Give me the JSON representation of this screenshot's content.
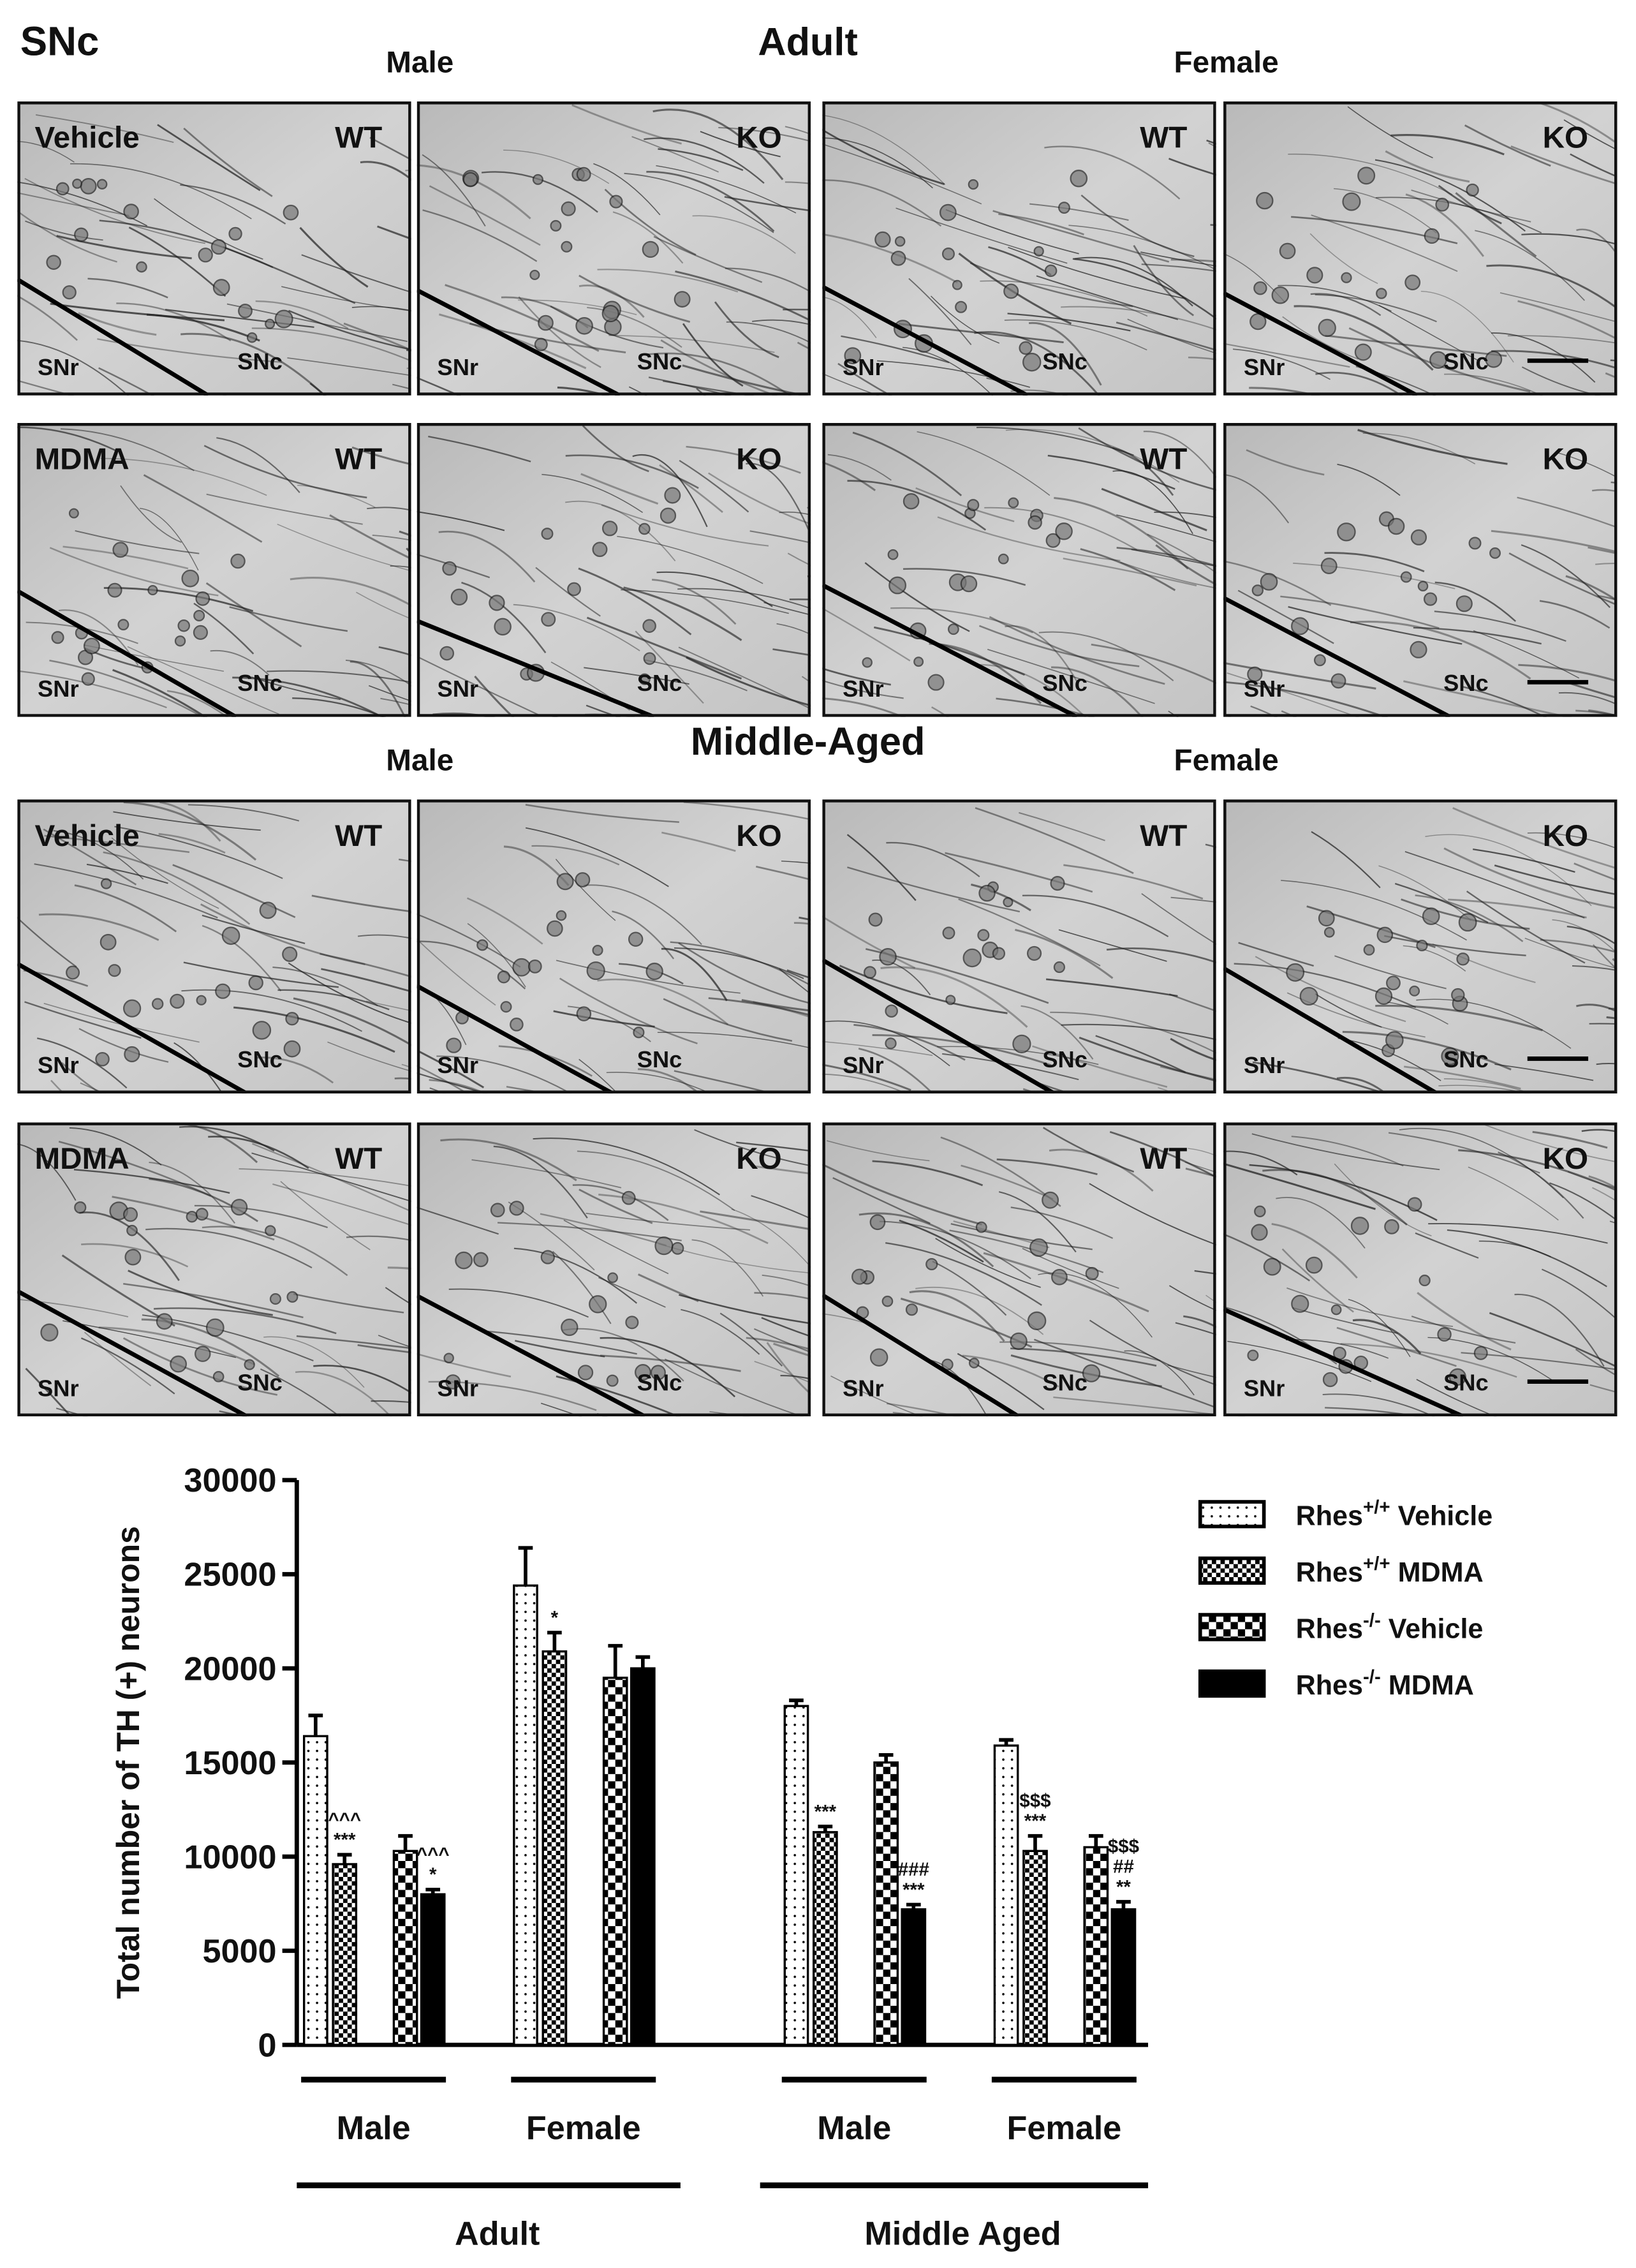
{
  "micrographs": {
    "label": "SNc",
    "sections": [
      {
        "title": "Adult",
        "sexes": [
          "Male",
          "Female"
        ],
        "rows": [
          {
            "treatment": "Vehicle",
            "panels": [
              {
                "genotype": "WT",
                "regions": [
                  "SNr",
                  "SNc"
                ]
              },
              {
                "genotype": "KO",
                "regions": [
                  "SNr",
                  "SNc"
                ]
              },
              {
                "genotype": "WT",
                "regions": [
                  "SNr",
                  "SNc"
                ]
              },
              {
                "genotype": "KO",
                "regions": [
                  "SNr",
                  "SNc"
                ]
              }
            ]
          },
          {
            "treatment": "MDMA",
            "panels": [
              {
                "genotype": "WT",
                "regions": [
                  "SNr",
                  "SNc"
                ]
              },
              {
                "genotype": "KO",
                "regions": [
                  "SNr",
                  "SNc"
                ]
              },
              {
                "genotype": "WT",
                "regions": [
                  "SNr",
                  "SNc"
                ]
              },
              {
                "genotype": "KO",
                "regions": [
                  "SNr",
                  "SNc"
                ]
              }
            ]
          }
        ]
      },
      {
        "title": "Middle-Aged",
        "sexes": [
          "Male",
          "Female"
        ],
        "rows": [
          {
            "treatment": "Vehicle",
            "panels": [
              {
                "genotype": "WT",
                "regions": [
                  "SNr",
                  "SNc"
                ]
              },
              {
                "genotype": "KO",
                "regions": [
                  "SNr",
                  "SNc"
                ]
              },
              {
                "genotype": "WT",
                "regions": [
                  "SNr",
                  "SNc"
                ]
              },
              {
                "genotype": "KO",
                "regions": [
                  "SNr",
                  "SNc"
                ]
              }
            ]
          },
          {
            "treatment": "MDMA",
            "panels": [
              {
                "genotype": "WT",
                "regions": [
                  "SNr",
                  "SNc"
                ]
              },
              {
                "genotype": "KO",
                "regions": [
                  "SNr",
                  "SNc"
                ]
              },
              {
                "genotype": "WT",
                "regions": [
                  "SNr",
                  "SNc"
                ]
              },
              {
                "genotype": "KO",
                "regions": [
                  "SNr",
                  "SNc"
                ]
              }
            ]
          }
        ]
      }
    ]
  },
  "chart_data": {
    "type": "bar",
    "y_label": "Total number of TH (+) neurons",
    "categories": [
      "Male",
      "Female",
      "Male",
      "Female"
    ],
    "group_labels": [
      "Adult",
      "Middle Aged"
    ],
    "ylim": [
      0,
      30000
    ],
    "yticks": [
      0,
      5000,
      10000,
      15000,
      20000,
      25000,
      30000
    ],
    "legend_position": "upper right",
    "series": [
      {
        "name": "Rhes+/+ Vehicle",
        "color": "#ffffff",
        "pattern": "dots",
        "values": [
          16400,
          24400,
          18000,
          15900
        ],
        "errors": [
          1100,
          2000,
          300,
          300
        ],
        "annotations": [
          null,
          null,
          null,
          null
        ]
      },
      {
        "name": "Rhes+/+ MDMA",
        "color": "#ffffff",
        "pattern": "fine-check",
        "values": [
          9600,
          20900,
          11300,
          10300
        ],
        "errors": [
          500,
          1000,
          300,
          800
        ],
        "annotations": [
          [
            "^^^",
            "***"
          ],
          [
            "*"
          ],
          [
            "***"
          ],
          [
            "$$$",
            "***"
          ]
        ]
      },
      {
        "name": "Rhes-/- Vehicle",
        "color": "#ffffff",
        "pattern": "coarse-check",
        "values": [
          10300,
          19500,
          15000,
          10500
        ],
        "errors": [
          800,
          1700,
          400,
          600
        ],
        "annotations": [
          null,
          null,
          null,
          null
        ]
      },
      {
        "name": "Rhes-/- MDMA",
        "color": "#000000",
        "pattern": "solid",
        "values": [
          8000,
          20000,
          7200,
          7200
        ],
        "errors": [
          250,
          600,
          250,
          400
        ],
        "annotations": [
          [
            "^^^",
            "*"
          ],
          null,
          [
            "###",
            "***"
          ],
          [
            "$$$",
            "##",
            "**"
          ]
        ]
      }
    ]
  }
}
